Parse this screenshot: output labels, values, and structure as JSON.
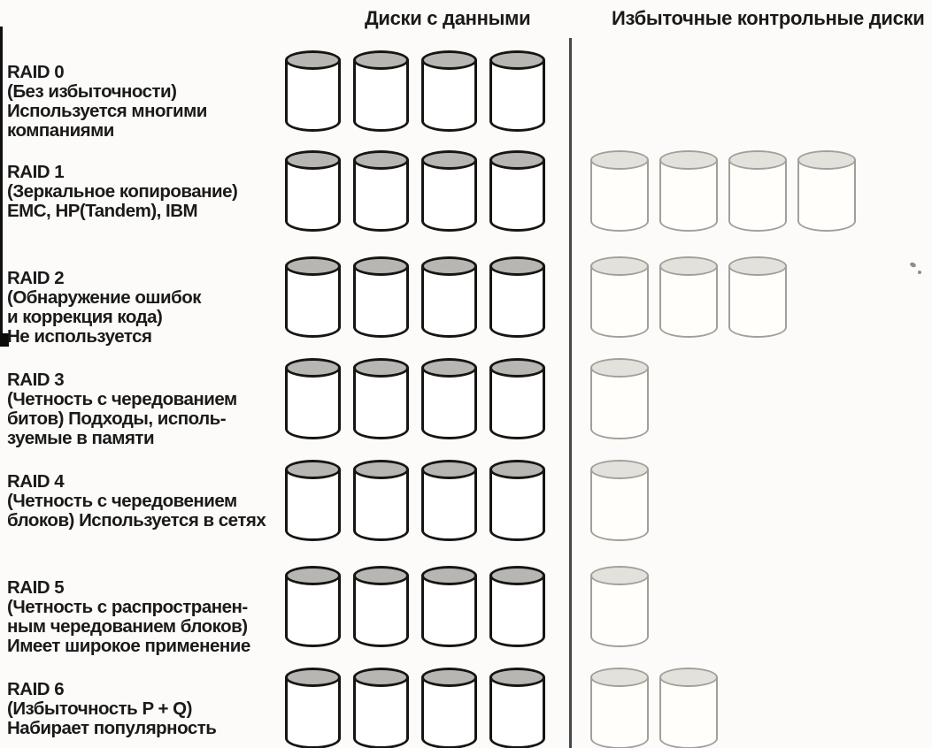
{
  "figure": {
    "description": "RAID levels diagram (book scan, Russian)",
    "headers": {
      "data_disks": "Диски с данными",
      "check_disks": "Избыточные контрольные диски"
    }
  },
  "colors": {
    "background": "#fcfbf9",
    "text": "#1a1a1a",
    "divider": "#474747",
    "data_disk_outline": "#171512",
    "data_disk_top": "#b7b6b3",
    "data_disk_body": "#ffffff",
    "check_disk_outline": "#a29f99",
    "check_disk_top": "#e2e1dc",
    "check_disk_body": "#fffefb"
  },
  "rows": [
    {
      "id": "raid-0",
      "label_lines": [
        "RAID 0",
        "(Без избыточности)",
        "Используется многими",
        "компаниями"
      ],
      "data_disks": 4,
      "check_disks": 0
    },
    {
      "id": "raid-1",
      "label_lines": [
        "RAID 1",
        "(Зеркальное копирование)",
        "EMC, HP(Tandem), IBM"
      ],
      "data_disks": 4,
      "check_disks": 4
    },
    {
      "id": "raid-2",
      "label_lines": [
        "RAID 2",
        "(Обнаружение ошибок",
        "и коррекция кода)",
        "Не используется"
      ],
      "data_disks": 4,
      "check_disks": 3
    },
    {
      "id": "raid-3",
      "label_lines": [
        "RAID 3",
        "(Четность с чередованием",
        "битов) Подходы, исполь-",
        "зуемые в памяти"
      ],
      "data_disks": 4,
      "check_disks": 1
    },
    {
      "id": "raid-4",
      "label_lines": [
        "RAID 4",
        "(Четность с чередовением",
        "блоков) Используется в сетях"
      ],
      "data_disks": 4,
      "check_disks": 1
    },
    {
      "id": "raid-5",
      "label_lines": [
        "RAID 5",
        "(Четность с распространен-",
        "ным чередованием блоков)",
        "Имеет широкое применение"
      ],
      "data_disks": 4,
      "check_disks": 1
    },
    {
      "id": "raid-6",
      "label_lines": [
        "RAID 6",
        "(Избыточность P + Q)",
        "Набирает популярность"
      ],
      "data_disks": 4,
      "check_disks": 2
    }
  ]
}
